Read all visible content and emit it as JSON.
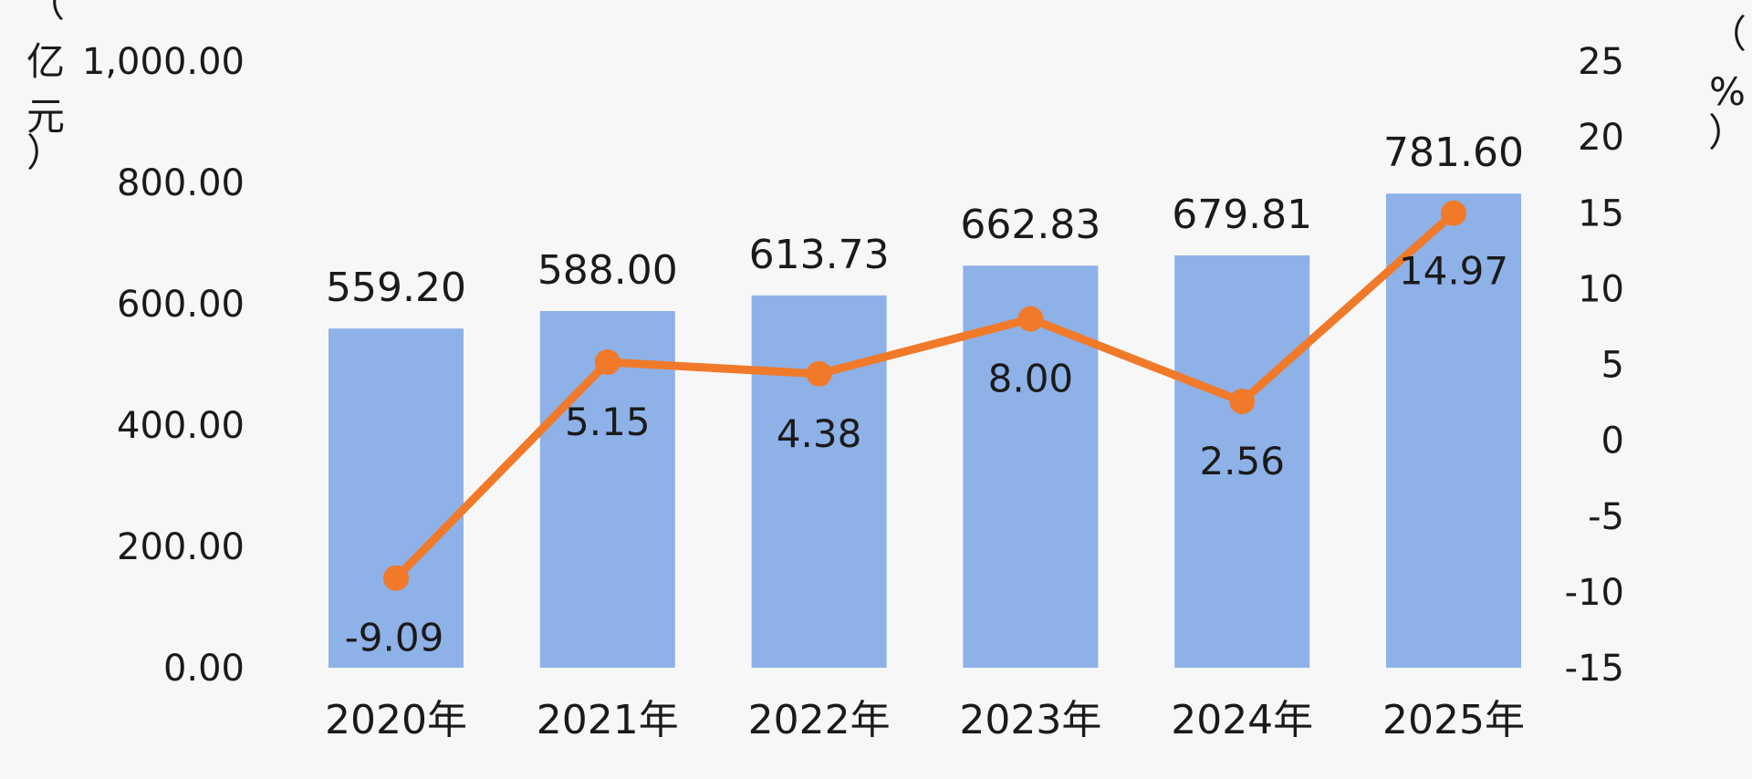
{
  "chart_data": {
    "type": "bar+line",
    "categories": [
      "2020年",
      "2021年",
      "2022年",
      "2023年",
      "2024年",
      "2025年"
    ],
    "series": [
      {
        "type": "bar",
        "axis": "left",
        "values": [
          559.2,
          588.0,
          613.73,
          662.83,
          679.81,
          781.6
        ],
        "labels": [
          "559.20",
          "588.00",
          "613.73",
          "662.83",
          "679.81",
          "781.60"
        ],
        "color": "#8eb1e8"
      },
      {
        "type": "line",
        "axis": "right",
        "values": [
          -9.09,
          5.15,
          4.38,
          8.0,
          2.56,
          14.97
        ],
        "labels": [
          "-9.09",
          "5.15",
          "4.38",
          "8.00",
          "2.56",
          "14.97"
        ],
        "color": "#f07a2a"
      }
    ],
    "y_left": {
      "label_chars": [
        "（",
        "亿",
        "元",
        "）"
      ],
      "range": [
        0,
        1000
      ],
      "ticks": [
        "0.00",
        "200.00",
        "400.00",
        "600.00",
        "800.00",
        "1,000.00"
      ]
    },
    "y_right": {
      "label_chars": [
        "（",
        "%",
        "）"
      ],
      "range": [
        -15,
        25
      ],
      "ticks": [
        "-15",
        "-10",
        "-5",
        "0",
        "5",
        "10",
        "15",
        "20",
        "25"
      ]
    },
    "grid": false,
    "legend": "none"
  }
}
